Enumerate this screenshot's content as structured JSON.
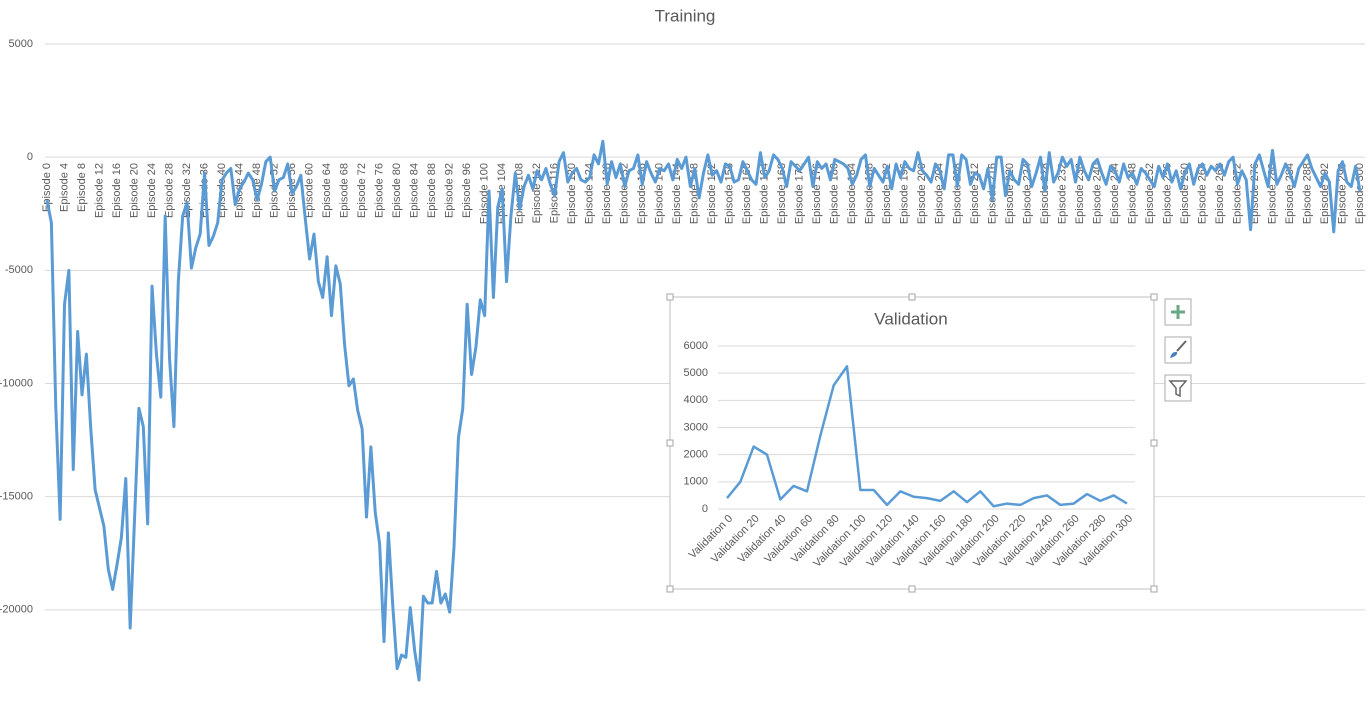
{
  "chart_data": [
    {
      "type": "line",
      "title": "Training",
      "color": "#5b9bd5",
      "grid": true,
      "ylim": [
        -25000,
        5000
      ],
      "yticks": [
        5000,
        0,
        -5000,
        -10000,
        -15000,
        -20000
      ],
      "categories": [
        "Episode 0",
        null,
        null,
        null,
        "Episode 4",
        null,
        null,
        null,
        "Episode 8",
        null,
        null,
        null,
        "Episode 12",
        null,
        null,
        null,
        "Episode 16",
        null,
        null,
        null,
        "Episode 20",
        null,
        null,
        null,
        "Episode 24",
        null,
        null,
        null,
        "Episode 28",
        null,
        null,
        null,
        "Episode 32",
        null,
        null,
        null,
        "Episode 36",
        null,
        null,
        null,
        "Episode 40",
        null,
        null,
        null,
        "Episode 44",
        null,
        null,
        null,
        "Episode 48",
        null,
        null,
        null,
        "Episode 52",
        null,
        null,
        null,
        "Episode 56",
        null,
        null,
        null,
        "Episode 60",
        null,
        null,
        null,
        "Episode 64",
        null,
        null,
        null,
        "Episode 68",
        null,
        null,
        null,
        "Episode 72",
        null,
        null,
        null,
        "Episode 76",
        null,
        null,
        null,
        "Episode 80",
        null,
        null,
        null,
        "Episode 84",
        null,
        null,
        null,
        "Episode 88",
        null,
        null,
        null,
        "Episode 92",
        null,
        null,
        null,
        "Episode 96",
        null,
        null,
        null,
        "Episode 100",
        null,
        null,
        null,
        "Episode 104",
        null,
        null,
        null,
        "Episode 108",
        null,
        null,
        null,
        "Episode 112",
        null,
        null,
        null,
        "Episode 116",
        null,
        null,
        null,
        "Episode 120",
        null,
        null,
        null,
        "Episode 124",
        null,
        null,
        null,
        "Episode 128",
        null,
        null,
        null,
        "Episode 132",
        null,
        null,
        null,
        "Episode 136",
        null,
        null,
        null,
        "Episode 140",
        null,
        null,
        null,
        "Episode 144",
        null,
        null,
        null,
        "Episode 148",
        null,
        null,
        null,
        "Episode 152",
        null,
        null,
        null,
        "Episode 156",
        null,
        null,
        null,
        "Episode 160",
        null,
        null,
        null,
        "Episode 164",
        null,
        null,
        null,
        "Episode 168",
        null,
        null,
        null,
        "Episode 172",
        null,
        null,
        null,
        "Episode 176",
        null,
        null,
        null,
        "Episode 180",
        null,
        null,
        null,
        "Episode 184",
        null,
        null,
        null,
        "Episode 188",
        null,
        null,
        null,
        "Episode 192",
        null,
        null,
        null,
        "Episode 196",
        null,
        null,
        null,
        "Episode 200",
        null,
        null,
        null,
        "Episode 204",
        null,
        null,
        null,
        "Episode 208",
        null,
        null,
        null,
        "Episode 212",
        null,
        null,
        null,
        "Episode 216",
        null,
        null,
        null,
        "Episode 220",
        null,
        null,
        null,
        "Episode 224",
        null,
        null,
        null,
        "Episode 228",
        null,
        null,
        null,
        "Episode 232",
        null,
        null,
        null,
        "Episode 236",
        null,
        null,
        null,
        "Episode 240",
        null,
        null,
        null,
        "Episode 244",
        null,
        null,
        null,
        "Episode 248",
        null,
        null,
        null,
        "Episode 252",
        null,
        null,
        null,
        "Episode 256",
        null,
        null,
        null,
        "Episode 260",
        null,
        null,
        null,
        "Episode 264",
        null,
        null,
        null,
        "Episode 268",
        null,
        null,
        null,
        "Episode 272",
        null,
        null,
        null,
        "Episode 276",
        null,
        null,
        null,
        "Episode 280",
        null,
        null,
        null,
        "Episode 284",
        null,
        null,
        null,
        "Episode 288",
        null,
        null,
        null,
        "Episode 292",
        null,
        null,
        null,
        "Episode 296",
        null,
        null,
        null,
        "Episode 300"
      ],
      "values": [
        -1900,
        -2900,
        -11000,
        -16000,
        -6500,
        -5000,
        -13800,
        -7700,
        -10500,
        -8700,
        -12000,
        -14700,
        -15500,
        -16300,
        -18200,
        -19100,
        -18000,
        -16800,
        -14200,
        -20800,
        -16000,
        -11100,
        -11900,
        -16200,
        -5700,
        -8700,
        -10600,
        -2600,
        -8900,
        -11900,
        -5500,
        -2600,
        -2000,
        -4900,
        -4000,
        -3400,
        -700,
        -3900,
        -3500,
        -2900,
        -1000,
        -700,
        -500,
        -2100,
        -1400,
        -1100,
        -700,
        -1000,
        -1900,
        -1200,
        -200,
        0,
        -1500,
        -1000,
        -900,
        -300,
        -1600,
        -1300,
        -800,
        -2700,
        -4500,
        -3400,
        -5500,
        -6200,
        -4400,
        -7000,
        -4800,
        -5600,
        -8300,
        -10100,
        -9800,
        -11200,
        -12000,
        -15900,
        -12800,
        -15700,
        -17100,
        -21400,
        -16600,
        -19800,
        -22600,
        -22000,
        -22100,
        -19900,
        -21800,
        -23100,
        -19400,
        -19700,
        -19700,
        -18300,
        -19700,
        -19300,
        -20100,
        -17200,
        -12400,
        -11100,
        -6500,
        -9600,
        -8400,
        -6300,
        -7000,
        -1500,
        -6200,
        -2200,
        -1400,
        -5500,
        -2600,
        -700,
        -2300,
        -1300,
        -800,
        -1400,
        -600,
        -1000,
        -500,
        -1200,
        -1700,
        -200,
        200,
        -1100,
        -700,
        -500,
        -1000,
        -1100,
        -900,
        100,
        -300,
        700,
        -1200,
        -200,
        -900,
        -300,
        -1300,
        -600,
        -500,
        100,
        -1200,
        -200,
        -700,
        -1100,
        -500,
        -600,
        -300,
        -1000,
        -100,
        -500,
        0,
        -1300,
        -500,
        -1800,
        -700,
        100,
        -800,
        -600,
        -1100,
        -300,
        -400,
        -1100,
        -1000,
        -200,
        -600,
        -1000,
        -1200,
        200,
        -900,
        -600,
        100,
        -100,
        -500,
        -1300,
        -200,
        -400,
        -600,
        -300,
        0,
        -1300,
        -200,
        -500,
        -300,
        -1000,
        -100,
        -200,
        -300,
        -500,
        -1200,
        -800,
        -100,
        100,
        -1300,
        -500,
        -800,
        -1100,
        -400,
        -1400,
        -300,
        -900,
        -200,
        -500,
        -600,
        200,
        -600,
        -800,
        -1100,
        -300,
        -600,
        -1400,
        100,
        100,
        -1300,
        100,
        -100,
        -1200,
        -700,
        -800,
        -1400,
        -500,
        -1900,
        0,
        0,
        -1700,
        -600,
        -1000,
        -1200,
        -100,
        -300,
        -1300,
        -700,
        0,
        -1500,
        200,
        -1100,
        -700,
        0,
        -400,
        -100,
        -1100,
        0,
        -600,
        -1000,
        -300,
        -100,
        -700,
        -1200,
        -400,
        -600,
        -1100,
        -300,
        -900,
        -700,
        -1200,
        -500,
        -700,
        -1000,
        -1300,
        -400,
        -900,
        -300,
        -1100,
        -600,
        -1400,
        -700,
        -300,
        -1200,
        -500,
        -300,
        -800,
        -400,
        -600,
        -300,
        -800,
        -200,
        0,
        -1200,
        -600,
        -1000,
        -3200,
        -300,
        100,
        -600,
        -1300,
        300,
        -1200,
        -800,
        -300,
        -700,
        -1300,
        -500,
        -200,
        100,
        -500,
        -900,
        -1300,
        -700,
        -1100,
        -3300,
        -600,
        -200,
        -1100,
        -1300,
        -400,
        -1500
      ]
    },
    {
      "type": "line",
      "title": "Validation",
      "color": "#5b9bd5",
      "grid": true,
      "ylim": [
        0,
        6000
      ],
      "yticks": [
        0,
        1000,
        2000,
        3000,
        4000,
        5000,
        6000
      ],
      "categories": [
        "Validation 0",
        null,
        "Validation 20",
        null,
        "Validation 40",
        null,
        "Validation 60",
        null,
        "Validation 80",
        null,
        "Validation 100",
        null,
        "Validation 120",
        null,
        "Validation 140",
        null,
        "Validation 160",
        null,
        "Validation 180",
        null,
        "Validation 200",
        null,
        "Validation 220",
        null,
        "Validation 240",
        null,
        "Validation 260",
        null,
        "Validation 280",
        null,
        "Validation 300"
      ],
      "values": [
        400,
        1000,
        2300,
        2000,
        350,
        850,
        650,
        2700,
        4550,
        5250,
        700,
        700,
        150,
        650,
        450,
        400,
        300,
        650,
        250,
        650,
        100,
        200,
        150,
        400,
        500,
        150,
        200,
        550,
        300,
        500,
        200
      ]
    }
  ]
}
